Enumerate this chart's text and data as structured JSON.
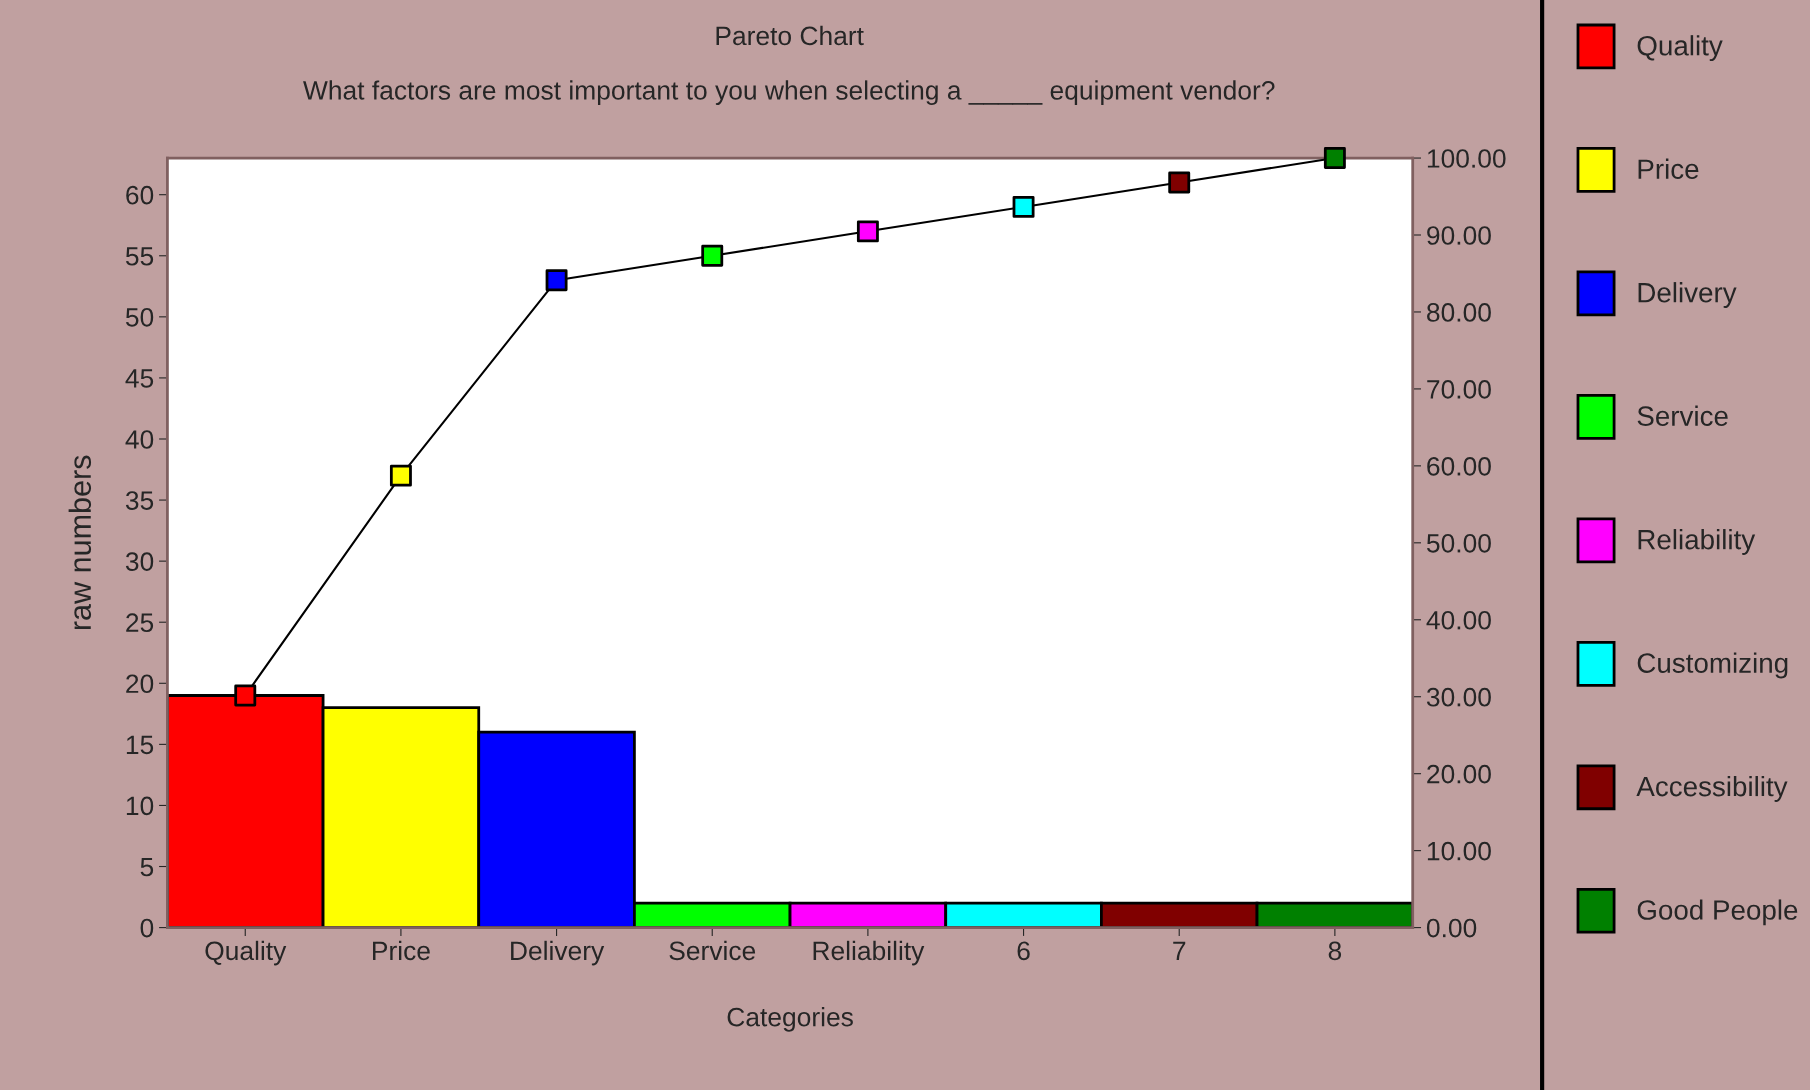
{
  "chart_data": {
    "type": "bar",
    "title": "Pareto Chart",
    "subtitle": "What factors are most important to you when selecting a _____ equipment vendor?",
    "xlabel": "Categories",
    "ylabel": "raw numbers",
    "categories": [
      "Quality",
      "Price",
      "Delivery",
      "Service",
      "Reliability",
      "6",
      "7",
      "8"
    ],
    "series": [
      {
        "name": "Quality",
        "color": "#ff0000",
        "values": [
          19,
          null,
          null,
          null,
          null,
          null,
          null,
          null
        ]
      },
      {
        "name": "Price",
        "color": "#ffff00",
        "values": [
          null,
          18,
          null,
          null,
          null,
          null,
          null,
          null
        ]
      },
      {
        "name": "Delivery",
        "color": "#0000ff",
        "values": [
          null,
          null,
          16,
          null,
          null,
          null,
          null,
          null
        ]
      },
      {
        "name": "Service",
        "color": "#00ff00",
        "values": [
          null,
          null,
          null,
          2,
          null,
          null,
          null,
          null
        ]
      },
      {
        "name": "Reliability",
        "color": "#ff00ff",
        "values": [
          null,
          null,
          null,
          null,
          2,
          null,
          null,
          null
        ]
      },
      {
        "name": "Customizing",
        "color": "#00ffff",
        "values": [
          null,
          null,
          null,
          null,
          null,
          2,
          null,
          null
        ]
      },
      {
        "name": "Accessibility",
        "color": "#800000",
        "values": [
          null,
          null,
          null,
          null,
          null,
          null,
          2,
          null
        ]
      },
      {
        "name": "Good People",
        "color": "#008000",
        "values": [
          null,
          null,
          null,
          null,
          null,
          null,
          null,
          2
        ]
      },
      {
        "type": "line",
        "color": "#000000",
        "marker": "square",
        "colors": [
          "#ff0000",
          "#ffff00",
          "#0000ff",
          "#00ff00",
          "#ff00ff",
          "#00ffff",
          "#800000",
          "#008000"
        ],
        "values": [
          19,
          37,
          53,
          55,
          57,
          59,
          61,
          63
        ]
      }
    ],
    "ylim": [
      0,
      63
    ],
    "yticks": [
      0,
      5,
      10,
      15,
      20,
      25,
      30,
      35,
      40,
      45,
      50,
      55,
      60
    ],
    "y2lim": [
      0,
      100
    ],
    "y2ticks": [
      {
        "value": 0,
        "label": "0.00"
      },
      {
        "value": 10,
        "label": "10.00"
      },
      {
        "value": 20,
        "label": "20.00"
      },
      {
        "value": 30,
        "label": "30.00"
      },
      {
        "value": 40,
        "label": "40.00"
      },
      {
        "value": 50,
        "label": "50.00"
      },
      {
        "value": 60,
        "label": "60.00"
      },
      {
        "value": 70,
        "label": "70.00"
      },
      {
        "value": 80,
        "label": "80.00"
      },
      {
        "value": 90,
        "label": "90.00"
      },
      {
        "value": 100,
        "label": "100.00"
      }
    ],
    "legend": "right",
    "grid": false
  }
}
